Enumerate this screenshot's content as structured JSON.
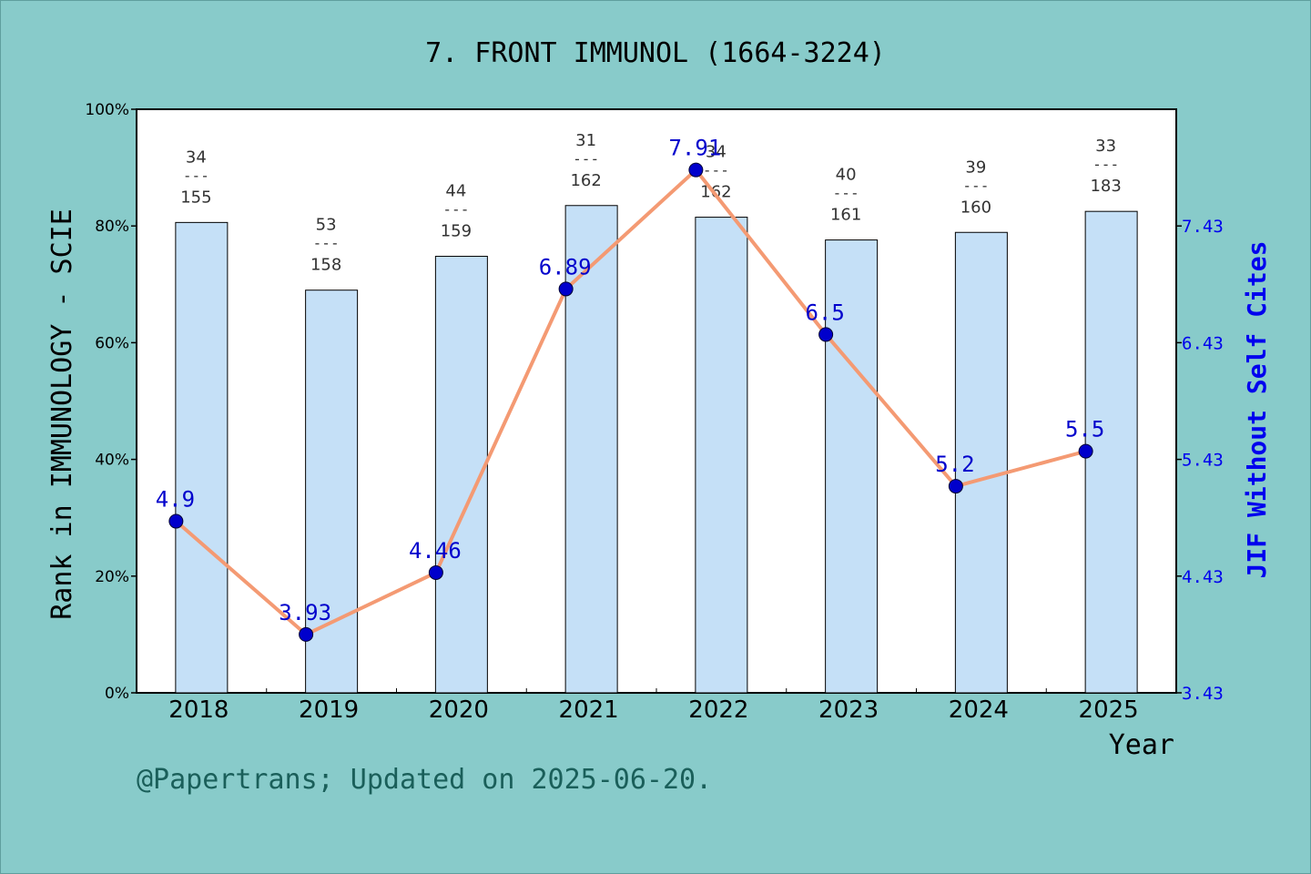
{
  "chart_data": {
    "type": "bar",
    "title": "7. FRONT IMMUNOL (1664-3224)",
    "xlabel": "Year",
    "ylabel": "Rank in IMMUNOLOGY - SCIE",
    "y2label": "JIF Without Self Cites",
    "categories": [
      "2018",
      "2019",
      "2020",
      "2021",
      "2022",
      "2023",
      "2024",
      "2025"
    ],
    "ylim": [
      0,
      100
    ],
    "yticks": [
      "0%",
      "20%",
      "40%",
      "60%",
      "80%",
      "100%"
    ],
    "y2lim": [
      3.43,
      8.43
    ],
    "y2ticks": [
      "3.43",
      "4.43",
      "5.43",
      "6.43",
      "7.43"
    ],
    "bar_series": {
      "values": [
        80.6,
        69.0,
        74.8,
        83.5,
        81.5,
        77.6,
        78.9,
        82.5
      ],
      "ranks": [
        "34",
        "53",
        "44",
        "31",
        "34",
        "40",
        "39",
        "33"
      ],
      "totals": [
        "155",
        "158",
        "159",
        "162",
        "162",
        "161",
        "160",
        "183"
      ],
      "color": "#c5e0f7"
    },
    "line_series": {
      "values": [
        4.9,
        3.93,
        4.46,
        6.89,
        7.91,
        6.5,
        5.2,
        5.5
      ],
      "labels": [
        "4.9",
        "3.93",
        "4.46",
        "6.89",
        "7.91",
        "6.5",
        "5.2",
        "5.5"
      ],
      "line_color": "#f49a73",
      "marker_color": "#0000cc"
    },
    "grid": false
  },
  "footer": "@Papertrans; Updated on 2025-06-20."
}
